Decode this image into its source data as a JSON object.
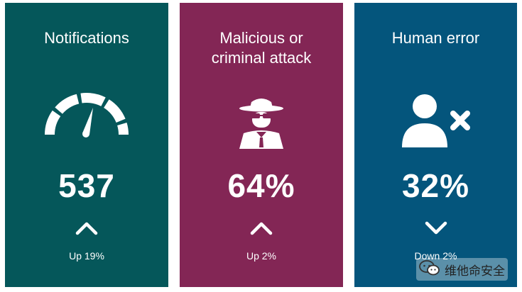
{
  "colors": {
    "card_notifications": "#05575A",
    "card_malicious": "#832655",
    "card_human_error": "#04557C",
    "text": "#FFFFFF"
  },
  "cards": [
    {
      "title": "Notifications",
      "icon": "speedometer-icon",
      "value": "537",
      "trend": "up",
      "trend_icon": "chevron-up-icon",
      "change": "Up 19%"
    },
    {
      "title": "Malicious or\ncriminal attack",
      "icon": "spy-hacker-icon",
      "value": "64%",
      "trend": "up",
      "trend_icon": "chevron-up-icon",
      "change": "Up 2%"
    },
    {
      "title": "Human error",
      "icon": "user-remove-icon",
      "value": "32%",
      "trend": "down",
      "trend_icon": "chevron-down-icon",
      "change": "Down 2%"
    }
  ],
  "watermark": {
    "icon": "wechat-icon",
    "text": "维他命安全"
  }
}
